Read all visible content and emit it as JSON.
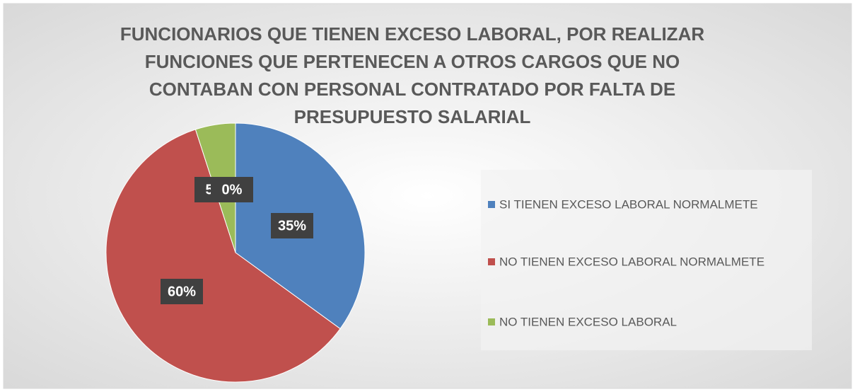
{
  "chart_data": {
    "type": "pie",
    "title": "FUNCIONARIOS QUE TIENEN EXCESO LABORAL, POR REALIZAR FUNCIONES QUE PERTENECEN A OTROS CARGOS QUE NO CONTABAN CON PERSONAL CONTRATADO POR FALTA DE PRESUPUESTO SALARIAL",
    "categories": [
      "SI TIENEN EXCESO LABORAL NORMALMETE",
      "NO TIENEN EXCESO LABORAL NORMALMETE",
      "NO TIENEN EXCESO LABORAL",
      null
    ],
    "values": [
      35,
      60,
      5,
      0
    ],
    "value_labels": [
      "35%",
      "60%",
      "5%",
      "0%"
    ],
    "colors": [
      "#4f81bd",
      "#c0504d",
      "#9bbb59",
      "#8064a2"
    ],
    "legend": "right"
  }
}
